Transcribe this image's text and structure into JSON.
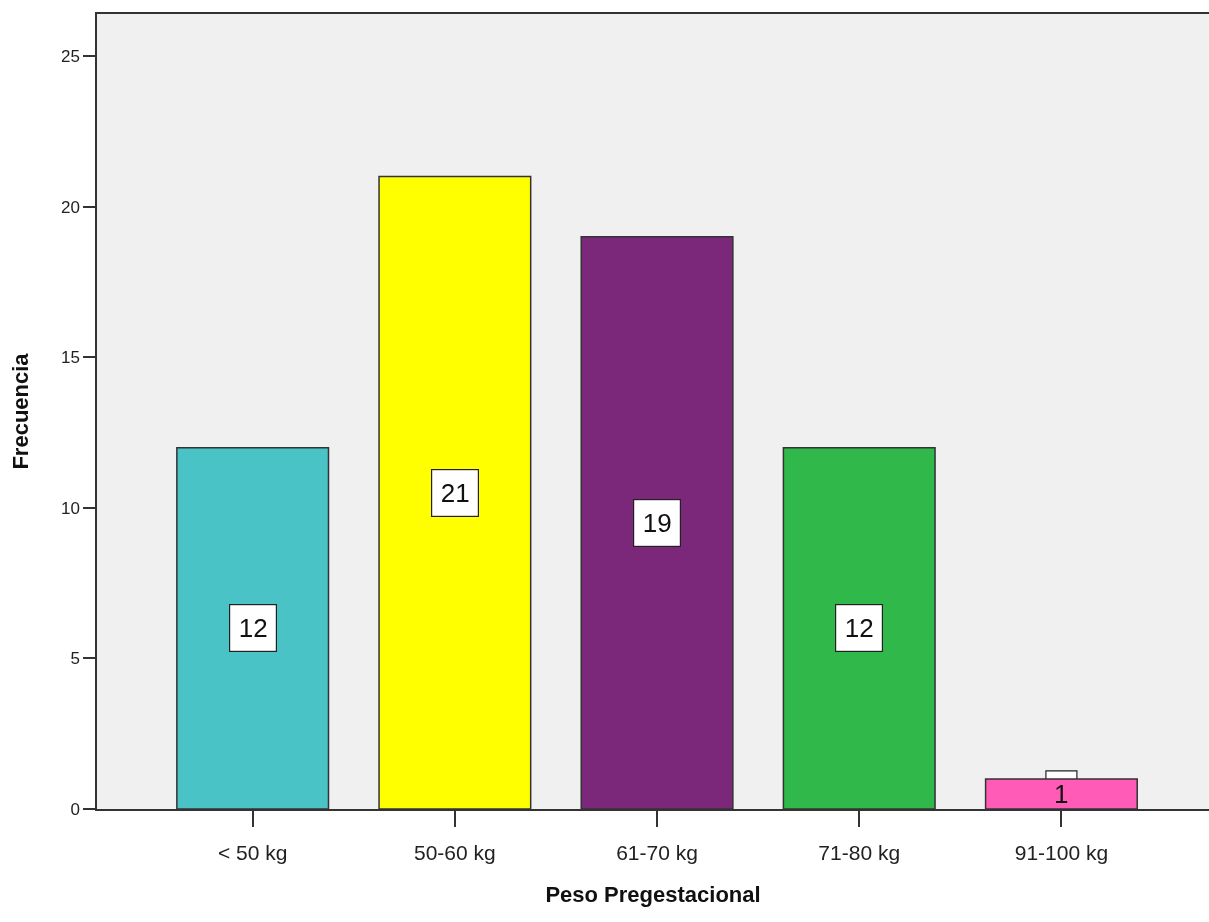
{
  "chart_data": {
    "type": "bar",
    "xlabel": "Peso Pregestacional",
    "ylabel": "Frecuencia",
    "categories": [
      "< 50 kg",
      "50-60 kg",
      "61-70 kg",
      "71-80 kg",
      "91-100 kg"
    ],
    "values": [
      12,
      21,
      19,
      12,
      1
    ],
    "colors": [
      "#4ac3c7",
      "#ffff00",
      "#7b287b",
      "#30b84a",
      "#ff5bb7"
    ],
    "ylim": [
      0,
      26.4
    ],
    "yticks": [
      0,
      5,
      10,
      15,
      20,
      25
    ],
    "data_labels": true
  }
}
